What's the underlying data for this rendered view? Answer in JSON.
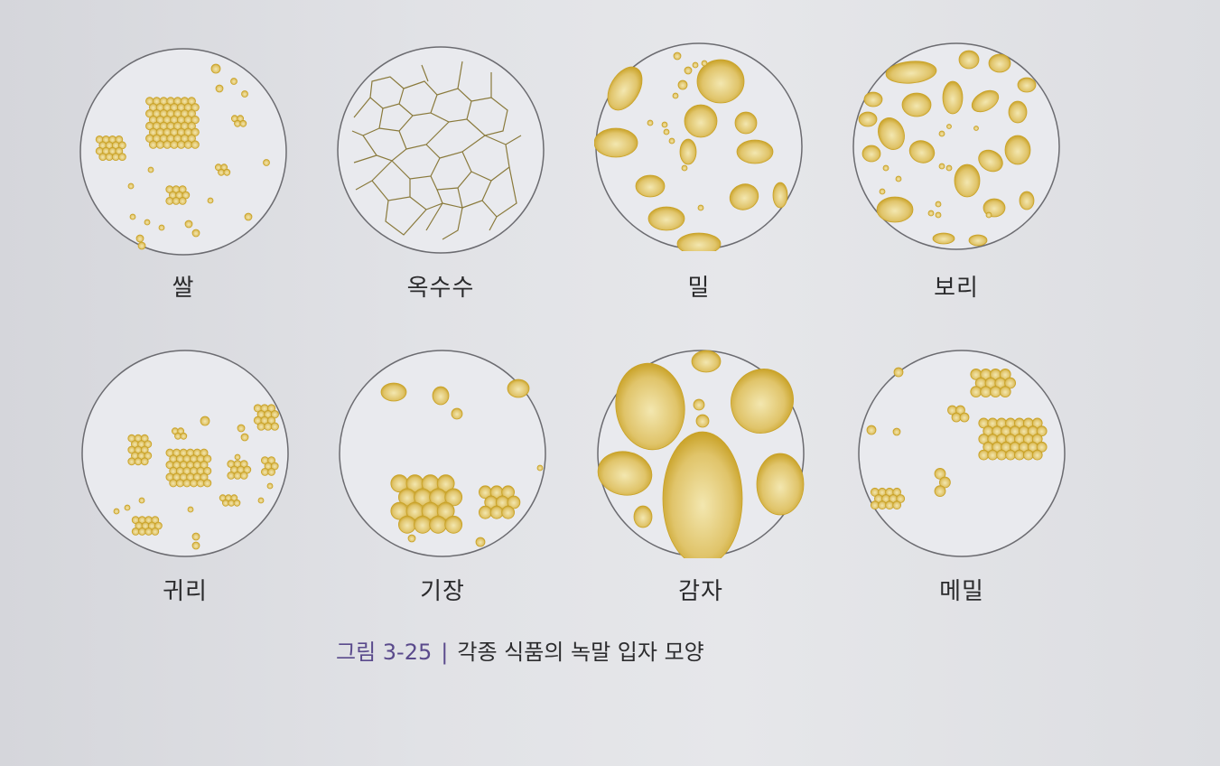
{
  "figure": {
    "number": "그림 3-25",
    "separator": "|",
    "title": "각종 식품의 녹말 입자 모양"
  },
  "colors": {
    "granule": "#c9a227",
    "granule_light": "#f3e7b0",
    "circle_fill": "#e9eaee",
    "circle_stroke": "#6b6b70",
    "crack": "#8a7a3c"
  },
  "panels": [
    {
      "id": "rice",
      "label": "쌀"
    },
    {
      "id": "corn",
      "label": "옥수수"
    },
    {
      "id": "wheat",
      "label": "밀"
    },
    {
      "id": "barley",
      "label": "보리"
    },
    {
      "id": "oat",
      "label": "귀리"
    },
    {
      "id": "millet",
      "label": "기장"
    },
    {
      "id": "potato",
      "label": "감자"
    },
    {
      "id": "buckwheat",
      "label": "메밀"
    }
  ]
}
